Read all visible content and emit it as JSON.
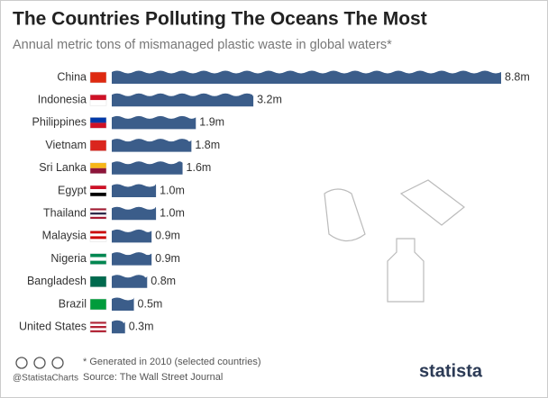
{
  "chart_data": {
    "type": "bar",
    "orientation": "horizontal",
    "title": "The Countries Polluting The Oceans The Most",
    "subtitle": "Annual metric tons of mismanaged plastic waste in global waters*",
    "categories": [
      "China",
      "Indonesia",
      "Philippines",
      "Vietnam",
      "Sri Lanka",
      "Egypt",
      "Thailand",
      "Malaysia",
      "Nigeria",
      "Bangladesh",
      "Brazil",
      "United States"
    ],
    "values": [
      8.8,
      3.2,
      1.9,
      1.8,
      1.6,
      1.0,
      1.0,
      0.9,
      0.9,
      0.8,
      0.5,
      0.3
    ],
    "value_labels": [
      "8.8m",
      "3.2m",
      "1.9m",
      "1.8m",
      "1.6m",
      "1.0m",
      "1.0m",
      "0.9m",
      "0.9m",
      "0.8m",
      "0.5m",
      "0.3m"
    ],
    "color": "#3b5d8a"
  },
  "footer": {
    "note": "* Generated in 2010 (selected countries)",
    "source": "Source: The Wall Street Journal",
    "handle": "@StatistaCharts",
    "logo": "statista"
  }
}
